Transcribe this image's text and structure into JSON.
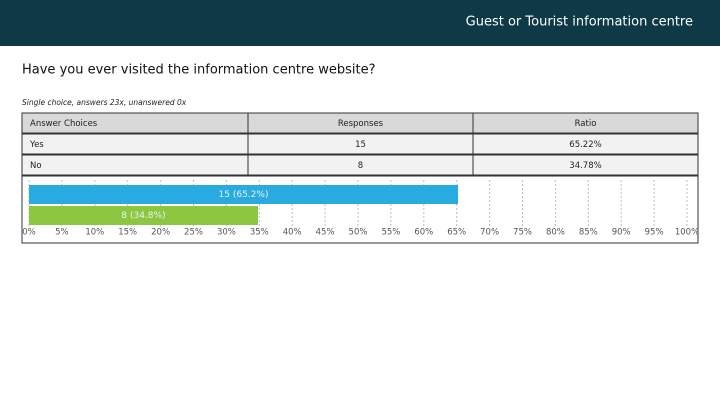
{
  "header": {
    "title": "Guest or Tourist information centre"
  },
  "question": "Have you ever visited the information centre website?",
  "subtitle": "Single choice, answers 23x, unanswered 0x",
  "table": {
    "columns": [
      "Answer Choices",
      "Responses",
      "Ratio"
    ],
    "rows": [
      [
        "Yes",
        "15",
        "65.22%"
      ],
      [
        "No",
        "8",
        "34.78%"
      ]
    ]
  },
  "chart_data": {
    "type": "hbar",
    "values": [
      65.2,
      34.8
    ],
    "value_labels": [
      "15 (65.2%)",
      "8 (34.8%)"
    ],
    "colors": [
      "#29abe2",
      "#8dc63f"
    ],
    "xlim": [
      0,
      100
    ],
    "xticks": [
      {
        "value": 0,
        "label": "0%"
      },
      {
        "value": 5,
        "label": "5%"
      },
      {
        "value": 10,
        "label": "10%"
      },
      {
        "value": 15,
        "label": "15%"
      },
      {
        "value": 20,
        "label": "20%"
      },
      {
        "value": 25,
        "label": "25%"
      },
      {
        "value": 30,
        "label": "30%"
      },
      {
        "value": 35,
        "label": "35%"
      },
      {
        "value": 40,
        "label": "40%"
      },
      {
        "value": 45,
        "label": "45%"
      },
      {
        "value": 50,
        "label": "50%"
      },
      {
        "value": 55,
        "label": "55%"
      },
      {
        "value": 60,
        "label": "60%"
      },
      {
        "value": 65,
        "label": "65%"
      },
      {
        "value": 70,
        "label": "70%"
      },
      {
        "value": 75,
        "label": "75%"
      },
      {
        "value": 80,
        "label": "80%"
      },
      {
        "value": 85,
        "label": "85%"
      },
      {
        "value": 90,
        "label": "90%"
      },
      {
        "value": 95,
        "label": "95%"
      },
      {
        "value": 100,
        "label": "100%"
      }
    ],
    "grid": true
  }
}
